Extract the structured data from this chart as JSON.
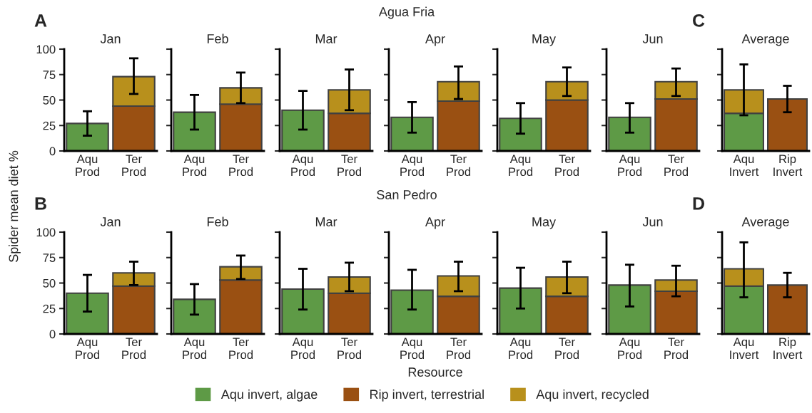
{
  "chart_data": [
    {
      "type": "bar",
      "stacked": true,
      "title": "Jan",
      "ylabel": "Spider mean diet %",
      "annotations": [
        "A",
        "Agua Fria"
      ],
      "legend": "bottom",
      "categories": [
        "Aqu\nProd",
        "Ter\nProd"
      ],
      "ylim": [
        0,
        100
      ],
      "yticks": [
        0,
        25,
        50,
        75,
        100
      ],
      "series": [
        {
          "name": "Aqu invert, algae",
          "color": "#5e9a46",
          "values": [
            27,
            null
          ],
          "errors": [
            [
              15,
              39
            ],
            null
          ]
        },
        {
          "name": "Rip invert, terrestrial",
          "color": "#9a5012",
          "values": [
            null,
            44
          ]
        },
        {
          "name": "Aqu invert, recycled",
          "color": "#b8901c",
          "values": [
            null,
            29
          ],
          "errors": [
            null,
            [
              56,
              91
            ]
          ]
        }
      ]
    },
    {
      "type": "bar",
      "stacked": true,
      "title": "Feb",
      "tick_labels": "x",
      "categories": [
        "Aqu\nProd",
        "Ter\nProd"
      ],
      "ylim": [
        0,
        100
      ],
      "yticks": [
        0,
        25,
        50,
        75,
        100
      ],
      "series": [
        {
          "color": "#5e9a46",
          "values": [
            38,
            null
          ],
          "errors": [
            [
              21,
              55
            ],
            null
          ]
        },
        {
          "color": "#9a5012",
          "values": [
            null,
            46
          ]
        },
        {
          "color": "#b8901c",
          "values": [
            null,
            16
          ],
          "errors": [
            null,
            [
              47,
              77
            ]
          ]
        }
      ]
    },
    {
      "type": "bar",
      "stacked": true,
      "title": "Mar",
      "tick_labels": "x",
      "categories": [
        "Aqu\nProd",
        "Ter\nProd"
      ],
      "ylim": [
        0,
        100
      ],
      "yticks": [
        0,
        25,
        50,
        75,
        100
      ],
      "series": [
        {
          "color": "#5e9a46",
          "values": [
            40,
            null
          ],
          "errors": [
            [
              21,
              59
            ],
            null
          ]
        },
        {
          "color": "#9a5012",
          "values": [
            null,
            37
          ]
        },
        {
          "color": "#b8901c",
          "values": [
            null,
            23
          ],
          "errors": [
            null,
            [
              40,
              80
            ]
          ]
        }
      ]
    },
    {
      "type": "bar",
      "stacked": true,
      "title": "Apr",
      "tick_labels": "x",
      "categories": [
        "Aqu\nProd",
        "Ter\nProd"
      ],
      "ylim": [
        0,
        100
      ],
      "yticks": [
        0,
        25,
        50,
        75,
        100
      ],
      "series": [
        {
          "color": "#5e9a46",
          "values": [
            33,
            null
          ],
          "errors": [
            [
              18,
              48
            ],
            null
          ]
        },
        {
          "color": "#9a5012",
          "values": [
            null,
            49
          ]
        },
        {
          "color": "#b8901c",
          "values": [
            null,
            19
          ],
          "errors": [
            null,
            [
              51,
              83
            ]
          ]
        }
      ]
    },
    {
      "type": "bar",
      "stacked": true,
      "title": "May",
      "tick_labels": "x",
      "categories": [
        "Aqu\nProd",
        "Ter\nProd"
      ],
      "ylim": [
        0,
        100
      ],
      "yticks": [
        0,
        25,
        50,
        75,
        100
      ],
      "series": [
        {
          "color": "#5e9a46",
          "values": [
            32,
            null
          ],
          "errors": [
            [
              17,
              47
            ],
            null
          ]
        },
        {
          "color": "#9a5012",
          "values": [
            null,
            50
          ]
        },
        {
          "color": "#b8901c",
          "values": [
            null,
            18
          ],
          "errors": [
            null,
            [
              54,
              82
            ]
          ]
        }
      ]
    },
    {
      "type": "bar",
      "stacked": true,
      "title": "Jun",
      "tick_labels": "x",
      "categories": [
        "Aqu\nProd",
        "Ter\nProd"
      ],
      "ylim": [
        0,
        100
      ],
      "yticks": [
        0,
        25,
        50,
        75,
        100
      ],
      "series": [
        {
          "color": "#5e9a46",
          "values": [
            33,
            null
          ],
          "errors": [
            [
              18,
              47
            ],
            null
          ]
        },
        {
          "color": "#9a5012",
          "values": [
            null,
            51
          ]
        },
        {
          "color": "#b8901c",
          "values": [
            null,
            17
          ],
          "errors": [
            null,
            [
              54,
              81
            ]
          ]
        }
      ]
    },
    {
      "type": "bar",
      "stacked": true,
      "title": "Average",
      "annotations": [
        "C"
      ],
      "tick_labels": "x",
      "categories": [
        "Aqu\nInvert",
        "Rip\nInvert"
      ],
      "ylim": [
        0,
        100
      ],
      "yticks": [
        0,
        25,
        50,
        75,
        100
      ],
      "series": [
        {
          "color": "#5e9a46",
          "values": [
            37,
            null
          ]
        },
        {
          "color": "#9a5012",
          "values": [
            null,
            51
          ],
          "errors": [
            null,
            [
              38,
              64
            ]
          ]
        },
        {
          "color": "#b8901c",
          "values": [
            23,
            null
          ],
          "errors": [
            [
              35,
              85
            ],
            null
          ]
        }
      ]
    },
    {
      "type": "bar",
      "stacked": true,
      "title": "Jan",
      "annotations": [
        "B",
        "San Pedro"
      ],
      "categories": [
        "Aqu\nProd",
        "Ter\nProd"
      ],
      "ylim": [
        0,
        100
      ],
      "yticks": [
        0,
        25,
        50,
        75,
        100
      ],
      "series": [
        {
          "color": "#5e9a46",
          "values": [
            40,
            null
          ],
          "errors": [
            [
              22,
              58
            ],
            null
          ]
        },
        {
          "color": "#9a5012",
          "values": [
            null,
            47
          ]
        },
        {
          "color": "#b8901c",
          "values": [
            null,
            13
          ],
          "errors": [
            null,
            [
              48,
              71
            ]
          ]
        }
      ]
    },
    {
      "type": "bar",
      "stacked": true,
      "title": "Feb",
      "tick_labels": "x",
      "categories": [
        "Aqu\nProd",
        "Ter\nProd"
      ],
      "ylim": [
        0,
        100
      ],
      "yticks": [
        0,
        25,
        50,
        75,
        100
      ],
      "series": [
        {
          "color": "#5e9a46",
          "values": [
            34,
            null
          ],
          "errors": [
            [
              19,
              49
            ],
            null
          ]
        },
        {
          "color": "#9a5012",
          "values": [
            null,
            53
          ]
        },
        {
          "color": "#b8901c",
          "values": [
            null,
            13
          ],
          "errors": [
            null,
            [
              54,
              77
            ]
          ]
        }
      ]
    },
    {
      "type": "bar",
      "stacked": true,
      "title": "Mar",
      "tick_labels": "x",
      "categories": [
        "Aqu\nProd",
        "Ter\nProd"
      ],
      "ylim": [
        0,
        100
      ],
      "yticks": [
        0,
        25,
        50,
        75,
        100
      ],
      "series": [
        {
          "color": "#5e9a46",
          "values": [
            44,
            null
          ],
          "errors": [
            [
              24,
              64
            ],
            null
          ]
        },
        {
          "color": "#9a5012",
          "values": [
            null,
            40
          ]
        },
        {
          "color": "#b8901c",
          "values": [
            null,
            16
          ],
          "errors": [
            null,
            [
              42,
              70
            ]
          ]
        }
      ]
    },
    {
      "type": "bar",
      "stacked": true,
      "title": "Apr",
      "xlabel": "Resource",
      "tick_labels": "x",
      "categories": [
        "Aqu\nProd",
        "Ter\nProd"
      ],
      "ylim": [
        0,
        100
      ],
      "yticks": [
        0,
        25,
        50,
        75,
        100
      ],
      "series": [
        {
          "color": "#5e9a46",
          "values": [
            43,
            null
          ],
          "errors": [
            [
              24,
              63
            ],
            null
          ]
        },
        {
          "color": "#9a5012",
          "values": [
            null,
            37
          ]
        },
        {
          "color": "#b8901c",
          "values": [
            null,
            20
          ],
          "errors": [
            null,
            [
              42,
              71
            ]
          ]
        }
      ]
    },
    {
      "type": "bar",
      "stacked": true,
      "title": "May",
      "tick_labels": "x",
      "categories": [
        "Aqu\nProd",
        "Ter\nProd"
      ],
      "ylim": [
        0,
        100
      ],
      "yticks": [
        0,
        25,
        50,
        75,
        100
      ],
      "series": [
        {
          "color": "#5e9a46",
          "values": [
            45,
            null
          ],
          "errors": [
            [
              25,
              65
            ],
            null
          ]
        },
        {
          "color": "#9a5012",
          "values": [
            null,
            37
          ]
        },
        {
          "color": "#b8901c",
          "values": [
            null,
            19
          ],
          "errors": [
            null,
            [
              40,
              71
            ]
          ]
        }
      ]
    },
    {
      "type": "bar",
      "stacked": true,
      "title": "Jun",
      "tick_labels": "x",
      "categories": [
        "Aqu\nProd",
        "Ter\nProd"
      ],
      "ylim": [
        0,
        100
      ],
      "yticks": [
        0,
        25,
        50,
        75,
        100
      ],
      "series": [
        {
          "color": "#5e9a46",
          "values": [
            48,
            null
          ],
          "errors": [
            [
              27,
              68
            ],
            null
          ]
        },
        {
          "color": "#9a5012",
          "values": [
            null,
            42
          ]
        },
        {
          "color": "#b8901c",
          "values": [
            null,
            11
          ],
          "errors": [
            null,
            [
              37,
              67
            ]
          ]
        }
      ]
    },
    {
      "type": "bar",
      "stacked": true,
      "title": "Average",
      "annotations": [
        "D"
      ],
      "tick_labels": "x",
      "categories": [
        "Aqu\nInvert",
        "Rip\nInvert"
      ],
      "ylim": [
        0,
        100
      ],
      "yticks": [
        0,
        25,
        50,
        75,
        100
      ],
      "series": [
        {
          "color": "#5e9a46",
          "values": [
            47,
            null
          ]
        },
        {
          "color": "#9a5012",
          "values": [
            null,
            48
          ],
          "errors": [
            null,
            [
              36,
              60
            ]
          ]
        },
        {
          "color": "#b8901c",
          "values": [
            17,
            null
          ],
          "errors": [
            [
              36,
              90
            ],
            null
          ]
        }
      ]
    }
  ]
}
